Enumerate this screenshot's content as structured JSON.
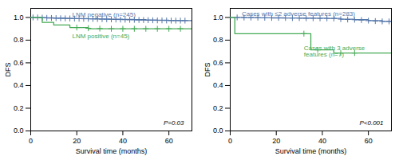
{
  "chart_data": [
    {
      "type": "step",
      "x_label": "Survival time (months)",
      "y_label": "DFS",
      "xlim": [
        0,
        70
      ],
      "ylim": [
        0.0,
        1.08
      ],
      "xticks": [
        0,
        20,
        40,
        60
      ],
      "yticks": [
        {
          "value": 0.0,
          "label": "0.0"
        },
        0.2,
        0.4,
        0.6,
        0.8,
        {
          "value": 1.0,
          "label": "1.0"
        }
      ],
      "annotations": [
        "P=0.03"
      ],
      "series": [
        {
          "name": "LNM negative (n=245)",
          "color": "#5577aa",
          "marker": "plus",
          "x": [
            0,
            2,
            4,
            7,
            10,
            15,
            20,
            25,
            30,
            35,
            40,
            45,
            50,
            55,
            60,
            65,
            70
          ],
          "values": [
            1.0,
            1.0,
            0.998,
            0.996,
            0.994,
            0.992,
            0.99,
            0.988,
            0.986,
            0.984,
            0.982,
            0.98,
            0.978,
            0.976,
            0.974,
            0.972,
            0.972
          ],
          "censor_x": [
            1,
            3,
            5,
            7,
            9,
            11,
            13,
            15,
            17,
            19,
            21,
            23,
            25,
            27,
            29,
            31,
            33,
            35,
            37,
            39,
            41,
            43,
            45,
            47,
            49,
            51,
            53,
            55,
            57,
            59,
            61,
            63,
            65,
            67
          ],
          "censor_y": [
            1.0,
            1.0,
            0.998,
            0.996,
            0.995,
            0.994,
            0.993,
            0.992,
            0.991,
            0.99,
            0.989,
            0.988,
            0.988,
            0.987,
            0.986,
            0.985,
            0.984,
            0.983,
            0.982,
            0.981,
            0.98,
            0.979,
            0.979,
            0.978,
            0.977,
            0.976,
            0.975,
            0.974,
            0.974,
            0.973,
            0.972,
            0.972,
            0.972,
            0.972
          ],
          "label_x": 18,
          "label_y": 1.005
        },
        {
          "name": "LNM positive (n=45)",
          "color": "#44aa55",
          "marker": "plus",
          "x": [
            0,
            5,
            10,
            17,
            20,
            25,
            30,
            35,
            40,
            45,
            50,
            55,
            60,
            65,
            70
          ],
          "values": [
            1.0,
            0.956,
            0.933,
            0.911,
            0.911,
            0.9,
            0.9,
            0.9,
            0.9,
            0.9,
            0.9,
            0.9,
            0.9,
            0.9,
            0.9
          ],
          "censor_x": [
            20,
            25,
            30,
            35,
            40,
            45,
            50,
            55,
            60,
            65
          ],
          "censor_y": [
            0.911,
            0.905,
            0.902,
            0.9,
            0.9,
            0.9,
            0.9,
            0.9,
            0.9,
            0.9
          ],
          "label_x": 18,
          "label_y": 0.855
        }
      ]
    },
    {
      "type": "step",
      "x_label": "Survival time (months)",
      "y_label": "DFS",
      "xlim": [
        0,
        70
      ],
      "ylim": [
        0.0,
        1.08
      ],
      "xticks": [
        0,
        20,
        40,
        60
      ],
      "yticks": [
        {
          "value": 0.0,
          "label": "0.0"
        },
        0.2,
        0.4,
        0.6,
        0.8,
        {
          "value": 1.0,
          "label": "1.0"
        }
      ],
      "annotations": [
        "P<0.001"
      ],
      "series": [
        {
          "name": "Cases with ≤2 adverse features (n=283)",
          "color": "#5577aa",
          "marker": "plus",
          "x": [
            0,
            3,
            6,
            9,
            12,
            18,
            24,
            30,
            36,
            42,
            48,
            54,
            60,
            66,
            70
          ],
          "values": [
            1.0,
            1.0,
            0.999,
            0.998,
            0.997,
            0.996,
            0.995,
            0.994,
            0.993,
            0.992,
            0.985,
            0.98,
            0.972,
            0.965,
            0.965
          ],
          "censor_x": [
            3,
            6,
            9,
            12,
            15,
            18,
            21,
            24,
            27,
            30,
            33,
            36,
            39,
            42,
            45,
            48,
            51,
            54,
            57,
            60,
            63,
            66,
            69
          ],
          "censor_y": [
            1.0,
            0.999,
            0.999,
            0.998,
            0.997,
            0.996,
            0.996,
            0.995,
            0.994,
            0.994,
            0.993,
            0.993,
            0.992,
            0.992,
            0.991,
            0.985,
            0.982,
            0.98,
            0.977,
            0.972,
            0.968,
            0.965,
            0.965
          ],
          "label_x": 5,
          "label_y": 1.01
        },
        {
          "name": "Cases with 3 adverse\nfeatures (n=7)",
          "color": "#44aa55",
          "marker": "plus",
          "x": [
            0,
            2,
            4,
            30,
            35,
            40,
            45,
            50,
            55,
            70
          ],
          "values": [
            1.0,
            0.857,
            0.857,
            0.857,
            0.714,
            0.714,
            0.686,
            0.686,
            0.686,
            0.686
          ],
          "censor_x": [
            32,
            38,
            48,
            54
          ],
          "censor_y": [
            0.857,
            0.714,
            0.686,
            0.686
          ],
          "label_x": 32,
          "label_y": 0.755
        }
      ]
    }
  ]
}
